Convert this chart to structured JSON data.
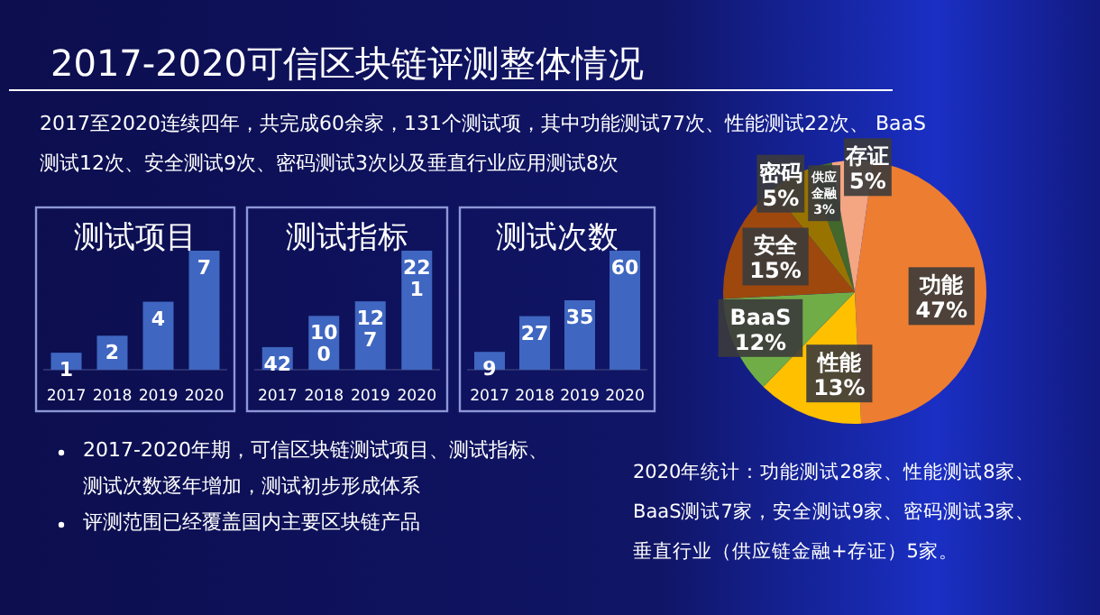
{
  "chart_data": [
    {
      "type": "other",
      "title": "2017-2020可信区块链评测整体情况",
      "annotations": [
        "2017至2020连续四年，共完成60余家，131个测试项，其中功能测试77次、性能测试22次、 BaaS测试12次、安全测试9次、密码测试3次以及垂直行业应用测试8次"
      ]
    },
    {
      "type": "bar",
      "title": "测试项目",
      "categories": [
        "2017",
        "2018",
        "2019",
        "2020"
      ],
      "values": [
        1,
        2,
        4,
        7
      ],
      "color": "#3f66c0",
      "data_labels": true
    },
    {
      "type": "bar",
      "title": "测试指标",
      "categories": [
        "2017",
        "2018",
        "2019",
        "2020"
      ],
      "values": [
        42,
        100,
        127,
        221
      ],
      "color": "#3f66c0",
      "data_labels": true
    },
    {
      "type": "bar",
      "title": "测试次数",
      "categories": [
        "2017",
        "2018",
        "2019",
        "2020"
      ],
      "values": [
        9,
        27,
        35,
        60
      ],
      "color": "#3f66c0",
      "data_labels": true
    },
    {
      "type": "pie",
      "categories": [
        "功能",
        "性能",
        "BaaS",
        "安全",
        "密码",
        "供应金融",
        "存证"
      ],
      "values": [
        47,
        13,
        12,
        15,
        5,
        3,
        5
      ],
      "colors": [
        "#ed7d31",
        "#ffc000",
        "#70ad47",
        "#9e480e",
        "#997300",
        "#43682b",
        "#f4a582"
      ],
      "value_labels": [
        "47%",
        "13%",
        "12%",
        "15%",
        "5%",
        "3%",
        "5%"
      ],
      "annotations": [
        "2020年统计：功能测试28家、性能测试8家、",
        "BaaS测试7家，安全测试9家、密码测试3家、",
        "垂直行业（供应链金融+存证）5家。"
      ]
    },
    {
      "type": "other",
      "annotations": [
        "2017-2020年期，可信区块链测试项目、测试指标、测试次数逐年增加，测试初步形成体系",
        "评测范围已经覆盖国内主要区块链产品"
      ]
    }
  ]
}
